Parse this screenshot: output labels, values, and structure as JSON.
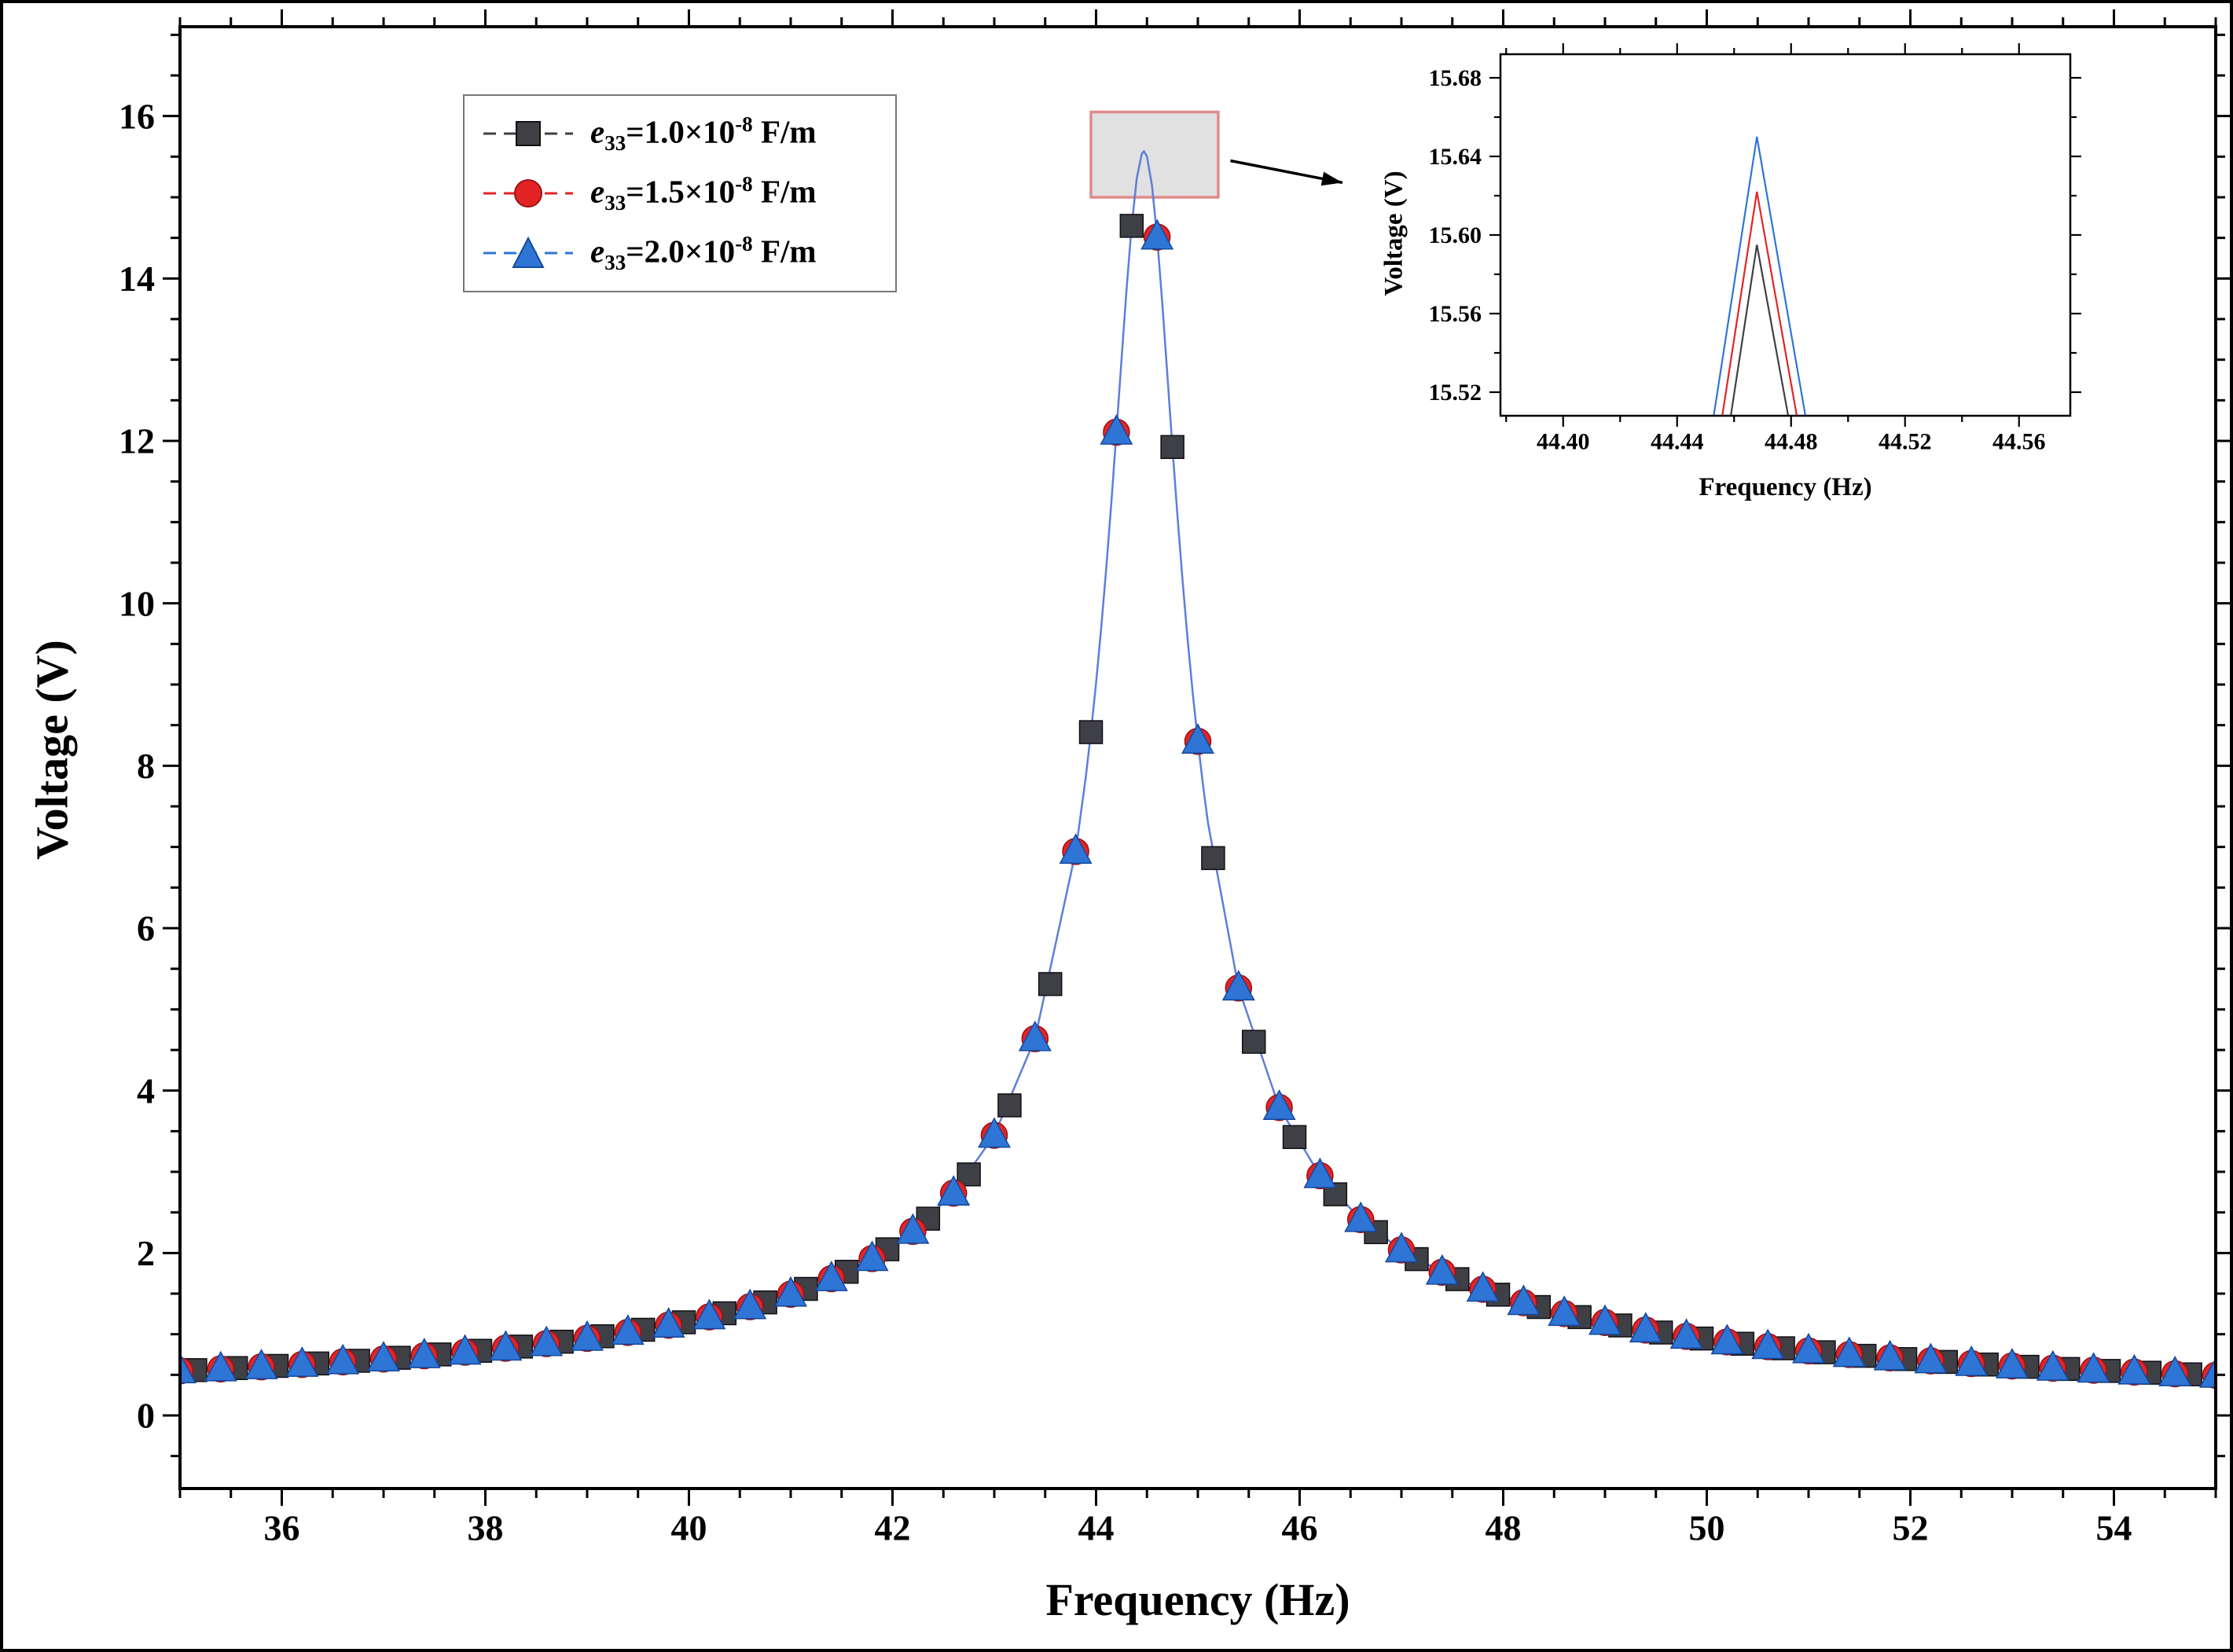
{
  "colors": {
    "annotation_fill": "#c9c9c9",
    "annotation_stroke": "#e08a8c",
    "curve_line": "#5e7ed8",
    "frame": "#000000"
  },
  "legend": {
    "items": [
      {
        "sym": "e",
        "sub": "33",
        "eq": "=1.0×10",
        "sup": "-8",
        "unit": " F/m",
        "marker": "square",
        "color": "#3f3f46",
        "edge": "#101014"
      },
      {
        "sym": "e",
        "sub": "33",
        "eq": "=1.5×10",
        "sup": "-8",
        "unit": " F/m",
        "marker": "circle",
        "color": "#e32426",
        "edge": "#9c1114"
      },
      {
        "sym": "e",
        "sub": "33",
        "eq": "=2.0×10",
        "sup": "-8",
        "unit": " F/m",
        "marker": "triangle",
        "color": "#2e75d6",
        "edge": "#14489c"
      }
    ]
  },
  "chart_data": [
    {
      "id": "main",
      "type": "line",
      "xlabel": "Frequency (Hz)",
      "ylabel": "Voltage (V)",
      "xlim": [
        35,
        55
      ],
      "ylim": [
        -0.9,
        17.1
      ],
      "x_major_ticks": [
        36,
        38,
        40,
        42,
        44,
        46,
        48,
        50,
        52,
        54
      ],
      "x_tick_labels": [
        "36",
        "38",
        "40",
        "42",
        "44",
        "46",
        "48",
        "50",
        "52",
        "54"
      ],
      "x_minor_step": 0.5,
      "y_major_ticks": [
        0,
        2,
        4,
        6,
        8,
        10,
        12,
        14,
        16
      ],
      "y_tick_labels": [
        "0",
        "2",
        "4",
        "6",
        "8",
        "10",
        "12",
        "14",
        "16"
      ],
      "y_minor_step": 0.5,
      "grid": false,
      "legend_position": "top-left",
      "show_markers": true,
      "show_series_lines": false,
      "curve": {
        "x": [
          35.0,
          35.4,
          35.8,
          36.2,
          36.6,
          37.0,
          37.4,
          37.8,
          38.2,
          38.6,
          39.0,
          39.4,
          39.8,
          40.2,
          40.6,
          41.0,
          41.4,
          41.8,
          42.2,
          42.6,
          43.0,
          43.4,
          43.8,
          43.9,
          43.95,
          44.0,
          44.05,
          44.1,
          44.15,
          44.2,
          44.25,
          44.3,
          44.35,
          44.4,
          44.45,
          44.47,
          44.5,
          44.55,
          44.6,
          44.65,
          44.7,
          44.75,
          44.8,
          44.85,
          44.9,
          44.95,
          45.0,
          45.05,
          45.1,
          45.4,
          45.8,
          46.2,
          46.6,
          47.0,
          47.4,
          47.8,
          48.2,
          48.6,
          49.0,
          49.4,
          49.8,
          50.2,
          50.6,
          51.0,
          51.4,
          51.8,
          52.2,
          52.6,
          53.0,
          53.4,
          53.8,
          54.2,
          54.6,
          55.0
        ],
        "y": [
          0.549,
          0.573,
          0.599,
          0.628,
          0.66,
          0.695,
          0.735,
          0.779,
          0.828,
          0.884,
          0.949,
          1.023,
          1.111,
          1.214,
          1.339,
          1.492,
          1.684,
          1.932,
          2.267,
          2.737,
          3.45,
          4.639,
          6.945,
          7.871,
          8.414,
          9.018,
          9.691,
          10.431,
          11.239,
          12.107,
          13.0,
          13.874,
          14.648,
          15.236,
          15.537,
          15.565,
          15.504,
          15.138,
          14.51,
          13.703,
          12.821,
          11.925,
          11.073,
          10.277,
          9.55,
          8.892,
          8.301,
          7.769,
          7.292,
          5.263,
          3.792,
          2.952,
          2.412,
          2.038,
          1.763,
          1.554,
          1.389,
          1.255,
          1.145,
          1.052,
          0.974,
          0.906,
          0.847,
          0.795,
          0.75,
          0.709,
          0.672,
          0.639,
          0.609,
          0.582,
          0.557,
          0.534,
          0.513,
          0.494
        ]
      },
      "series": [
        {
          "name": "e33=1.0×10^-8 F/m",
          "marker": "square",
          "color": "#3f3f46",
          "edge": "#101014",
          "x": [
            35.15,
            35.55,
            35.95,
            36.35,
            36.75,
            37.15,
            37.55,
            37.95,
            38.35,
            38.75,
            39.15,
            39.55,
            39.95,
            40.35,
            40.75,
            41.15,
            41.55,
            41.95,
            42.35,
            42.75,
            43.15,
            43.55,
            43.95,
            44.35,
            44.75,
            45.15,
            45.55,
            45.95,
            46.35,
            46.75,
            47.15,
            47.55,
            47.95,
            48.35,
            48.75,
            49.15,
            49.55,
            49.95,
            50.35,
            50.75,
            51.15,
            51.55,
            51.95,
            52.35,
            52.75,
            53.15,
            53.55,
            53.95,
            54.35,
            54.75
          ],
          "values": [
            0.558,
            0.583,
            0.61,
            0.64,
            0.673,
            0.71,
            0.751,
            0.796,
            0.848,
            0.908,
            0.975,
            1.055,
            1.147,
            1.258,
            1.392,
            1.558,
            1.769,
            2.046,
            2.423,
            2.968,
            3.818,
            5.312,
            8.414,
            14.648,
            11.925,
            6.863,
            4.601,
            3.428,
            2.723,
            2.257,
            1.925,
            1.678,
            1.487,
            1.335,
            1.211,
            1.108,
            1.021,
            0.947,
            0.883,
            0.827,
            0.778,
            0.734,
            0.694,
            0.659,
            0.627,
            0.599,
            0.572,
            0.548,
            0.526,
            0.506
          ]
        },
        {
          "name": "e33=1.5×10^-8 F/m",
          "marker": "circle",
          "color": "#e32426",
          "edge": "#9c1114",
          "x": [
            35.0,
            35.4,
            35.8,
            36.2,
            36.6,
            37.0,
            37.4,
            37.8,
            38.2,
            38.6,
            39.0,
            39.4,
            39.8,
            40.2,
            40.6,
            41.0,
            41.4,
            41.8,
            42.2,
            42.6,
            43.0,
            43.4,
            43.8,
            44.2,
            44.6,
            45.0,
            45.4,
            45.8,
            46.2,
            46.6,
            47.0,
            47.4,
            47.8,
            48.2,
            48.6,
            49.0,
            49.4,
            49.8,
            50.2,
            50.6,
            51.0,
            51.4,
            51.8,
            52.2,
            52.6,
            53.0,
            53.4,
            53.8,
            54.2,
            54.6,
            55.0
          ],
          "values": [
            0.549,
            0.573,
            0.599,
            0.628,
            0.66,
            0.695,
            0.735,
            0.779,
            0.828,
            0.884,
            0.949,
            1.023,
            1.111,
            1.214,
            1.339,
            1.492,
            1.684,
            1.932,
            2.267,
            2.737,
            3.45,
            4.639,
            6.945,
            12.107,
            14.51,
            8.301,
            5.263,
            3.792,
            2.952,
            2.412,
            2.038,
            1.763,
            1.554,
            1.389,
            1.255,
            1.145,
            1.052,
            0.974,
            0.906,
            0.847,
            0.795,
            0.75,
            0.709,
            0.672,
            0.639,
            0.609,
            0.582,
            0.557,
            0.534,
            0.513,
            0.494
          ]
        },
        {
          "name": "e33=2.0×10^-8 F/m",
          "marker": "triangle",
          "color": "#2e75d6",
          "edge": "#14489c",
          "x": [
            35.0,
            35.4,
            35.8,
            36.2,
            36.6,
            37.0,
            37.4,
            37.8,
            38.2,
            38.6,
            39.0,
            39.4,
            39.8,
            40.2,
            40.6,
            41.0,
            41.4,
            41.8,
            42.2,
            42.6,
            43.0,
            43.4,
            43.8,
            44.2,
            44.6,
            45.0,
            45.4,
            45.8,
            46.2,
            46.6,
            47.0,
            47.4,
            47.8,
            48.2,
            48.6,
            49.0,
            49.4,
            49.8,
            50.2,
            50.6,
            51.0,
            51.4,
            51.8,
            52.2,
            52.6,
            53.0,
            53.4,
            53.8,
            54.2,
            54.6,
            55.0
          ],
          "values": [
            0.549,
            0.573,
            0.599,
            0.628,
            0.66,
            0.695,
            0.735,
            0.779,
            0.828,
            0.884,
            0.949,
            1.023,
            1.111,
            1.214,
            1.339,
            1.492,
            1.684,
            1.932,
            2.267,
            2.737,
            3.45,
            4.639,
            6.945,
            12.107,
            14.51,
            8.301,
            5.263,
            3.792,
            2.952,
            2.412,
            2.038,
            1.763,
            1.554,
            1.389,
            1.255,
            1.145,
            1.052,
            0.974,
            0.906,
            0.847,
            0.795,
            0.75,
            0.709,
            0.672,
            0.639,
            0.609,
            0.582,
            0.557,
            0.534,
            0.513,
            0.494
          ]
        }
      ],
      "annotation_box": {
        "x1": 43.95,
        "x2": 45.2,
        "y1": 15.0,
        "y2": 16.05
      },
      "annotation_arrow": {
        "x1": 45.32,
        "y1": 15.45,
        "x2": 46.42,
        "y2": 15.18
      }
    },
    {
      "id": "inset",
      "type": "line",
      "xlabel": "Frequency (Hz)",
      "ylabel": "Voltage (V)",
      "xlim": [
        44.378,
        44.578
      ],
      "ylim": [
        15.508,
        15.692
      ],
      "x_major_ticks": [
        44.4,
        44.44,
        44.48,
        44.52,
        44.56
      ],
      "x_tick_labels": [
        "44.40",
        "44.44",
        "44.48",
        "44.52",
        "44.56"
      ],
      "x_minor_step": 0.02,
      "y_major_ticks": [
        15.52,
        15.56,
        15.6,
        15.64,
        15.68
      ],
      "y_tick_labels": [
        "15.52",
        "15.56",
        "15.60",
        "15.64",
        "15.68"
      ],
      "y_minor_step": 0.02,
      "grid": false,
      "show_markers": false,
      "show_series_lines": true,
      "series": [
        {
          "name": "e33=1.0×10^-8 F/m",
          "color": "#3f3f46",
          "x": [
            44.458,
            44.468,
            44.48
          ],
          "values": [
            15.5,
            15.595,
            15.5
          ]
        },
        {
          "name": "e33=1.5×10^-8 F/m",
          "color": "#e32426",
          "x": [
            44.455,
            44.468,
            44.483
          ],
          "values": [
            15.5,
            15.622,
            15.5
          ]
        },
        {
          "name": "e33=2.0×10^-8 F/m",
          "color": "#2e75d6",
          "x": [
            44.452,
            44.468,
            44.486
          ],
          "values": [
            15.5,
            15.65,
            15.5
          ]
        }
      ]
    }
  ]
}
